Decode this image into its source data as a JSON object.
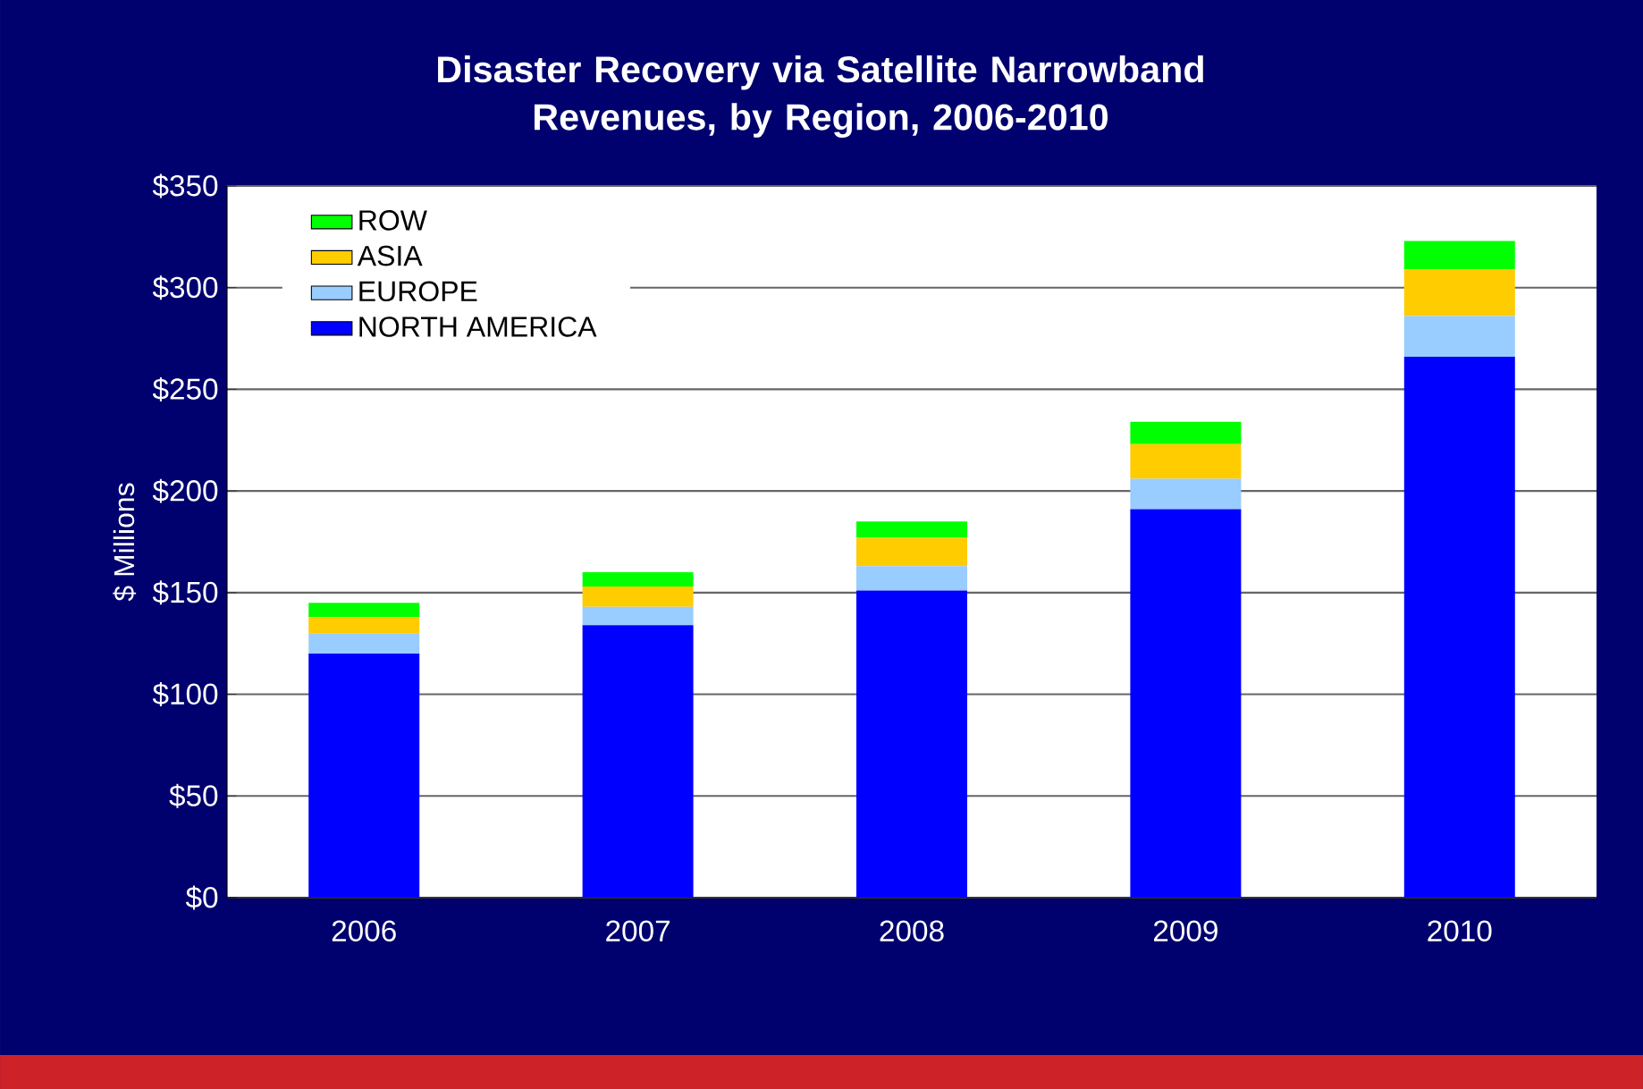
{
  "chart_data": {
    "type": "bar",
    "title": "Disaster Recovery via Satellite Narrowband Revenues, by Region, 2006-2010",
    "ylabel": "$ Millions",
    "categories": [
      "2006",
      "2007",
      "2008",
      "2009",
      "2010"
    ],
    "stacked": true,
    "series": [
      {
        "name": "NORTH AMERICA",
        "color": "#0000ff",
        "values": [
          120,
          134,
          151,
          191,
          266
        ]
      },
      {
        "name": "EUROPE",
        "color": "#99ccff",
        "values": [
          10,
          9,
          12,
          15,
          20
        ]
      },
      {
        "name": "ASIA",
        "color": "#ffcc00",
        "values": [
          8,
          10,
          14,
          17,
          23
        ]
      },
      {
        "name": "ROW",
        "color": "#00ff00",
        "values": [
          7,
          7,
          8,
          11,
          14
        ]
      }
    ],
    "ylim": [
      0,
      350
    ],
    "yticks": [
      {
        "value": 0,
        "label": "$0"
      },
      {
        "value": 50,
        "label": "$50"
      },
      {
        "value": 100,
        "label": "$100"
      },
      {
        "value": 150,
        "label": "$150"
      },
      {
        "value": 200,
        "label": "$200"
      },
      {
        "value": 250,
        "label": "$250"
      },
      {
        "value": 300,
        "label": "$300"
      },
      {
        "value": 350,
        "label": "$350"
      }
    ],
    "grid": "y",
    "legend": "top left"
  }
}
